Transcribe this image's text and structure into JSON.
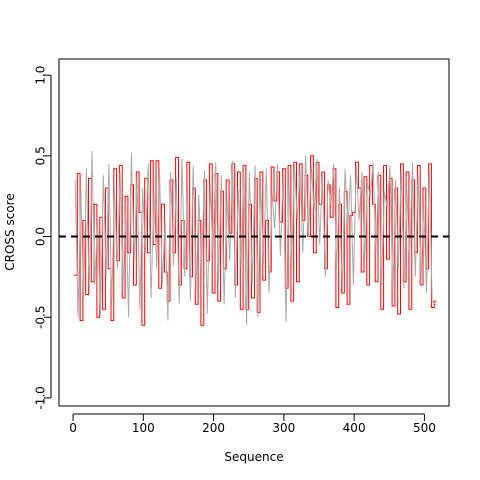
{
  "chart_data": {
    "type": "line",
    "title": "",
    "xlabel": "Sequence",
    "ylabel": "CROSS score",
    "xlim": [
      -20,
      535
    ],
    "ylim": [
      -1.05,
      1.1
    ],
    "xticks": [
      0,
      100,
      200,
      300,
      400,
      500
    ],
    "xtick_labels": [
      "0",
      "100",
      "200",
      "300",
      "400",
      "500"
    ],
    "yticks": [
      -1.0,
      -0.5,
      0.0,
      0.5,
      1.0
    ],
    "ytick_labels": [
      "-1.0",
      "-0.5",
      "0.0",
      "0.5",
      "1.0"
    ],
    "grid": false,
    "legend": "none",
    "reference_line": {
      "y": 0.0,
      "style": "dashed",
      "color": "#000000"
    },
    "series": [
      {
        "color": "#ff0000",
        "style": "step",
        "x": [
          1,
          6,
          10,
          14,
          18,
          22,
          26,
          30,
          34,
          38,
          42,
          46,
          50,
          54,
          58,
          62,
          66,
          70,
          74,
          78,
          82,
          86,
          90,
          94,
          98,
          102,
          106,
          110,
          114,
          118,
          122,
          126,
          130,
          134,
          138,
          142,
          146,
          150,
          154,
          158,
          162,
          166,
          170,
          174,
          178,
          182,
          186,
          190,
          194,
          198,
          202,
          206,
          210,
          214,
          218,
          222,
          226,
          230,
          234,
          238,
          242,
          246,
          250,
          254,
          258,
          262,
          266,
          270,
          274,
          278,
          282,
          286,
          290,
          294,
          298,
          302,
          306,
          310,
          314,
          318,
          322,
          326,
          330,
          334,
          338,
          342,
          346,
          350,
          354,
          358,
          362,
          366,
          370,
          374,
          378,
          382,
          386,
          390,
          394,
          398,
          402,
          406,
          410,
          414,
          418,
          422,
          426,
          430,
          434,
          438,
          442,
          446,
          450,
          454,
          458,
          462,
          466,
          470,
          474,
          478,
          482,
          486,
          490,
          494,
          498,
          502,
          506,
          510,
          514,
          517
        ],
        "y": [
          -0.24,
          0.39,
          -0.52,
          0.1,
          -0.36,
          0.36,
          -0.28,
          0.2,
          -0.5,
          0.12,
          -0.45,
          0.3,
          -0.2,
          -0.52,
          0.42,
          -0.15,
          0.44,
          -0.38,
          0.25,
          -0.1,
          0.32,
          -0.3,
          0.4,
          0.15,
          -0.55,
          0.36,
          -0.1,
          0.47,
          -0.05,
          0.47,
          -0.32,
          0.2,
          -0.22,
          -0.4,
          0.35,
          -0.1,
          0.49,
          -0.3,
          0.1,
          -0.2,
          0.46,
          -0.25,
          0.3,
          -0.42,
          0.1,
          -0.55,
          0.35,
          -0.15,
          0.45,
          -0.35,
          0.39,
          -0.4,
          0.28,
          -0.2,
          0.35,
          0.02,
          0.45,
          -0.3,
          0.4,
          -0.45,
          0.44,
          -0.45,
          0.2,
          -0.38,
          0.36,
          -0.47,
          0.4,
          -0.27,
          0.1,
          -0.22,
          0.43,
          0.22,
          0.4,
          0.09,
          0.42,
          -0.32,
          0.44,
          -0.4,
          0.46,
          -0.28,
          0.45,
          0.1,
          0.38,
          0.0,
          0.5,
          -0.1,
          0.46,
          0.2,
          0.4,
          -0.2,
          0.32,
          0.12,
          0.42,
          -0.44,
          0.2,
          -0.35,
          0.28,
          -0.42,
          0.13,
          0.15,
          0.46,
          0.3,
          -0.22,
          0.37,
          -0.3,
          0.44,
          0.2,
          -0.28,
          0.38,
          -0.45,
          0.44,
          -0.14,
          0.36,
          -0.43,
          0.3,
          -0.48,
          0.45,
          -0.28,
          0.4,
          -0.45,
          0.35,
          -0.1,
          0.44,
          -0.3,
          0.3,
          -0.2,
          0.45,
          -0.44,
          -0.4,
          -0.4
        ]
      },
      {
        "color": "#aaaaaa",
        "style": "line",
        "x": [
          3,
          7,
          11,
          15,
          19,
          23,
          27,
          31,
          35,
          39,
          43,
          47,
          51,
          55,
          59,
          63,
          67,
          71,
          75,
          79,
          83,
          87,
          91,
          95,
          99,
          103,
          107,
          111,
          115,
          119,
          123,
          127,
          131,
          135,
          139,
          143,
          147,
          151,
          155,
          159,
          163,
          167,
          171,
          175,
          179,
          183,
          187,
          191,
          195,
          199,
          203,
          207,
          211,
          215,
          219,
          223,
          227,
          231,
          235,
          239,
          243,
          247,
          251,
          255,
          259,
          263,
          267,
          271,
          275,
          279,
          283,
          287,
          291,
          295,
          299,
          303,
          307,
          311,
          315,
          319,
          323,
          327,
          331,
          335,
          339,
          343,
          347,
          351,
          355,
          359,
          363,
          367,
          371,
          375,
          379,
          383,
          387,
          391,
          395,
          399,
          403,
          407,
          411,
          415,
          419,
          423,
          427,
          431,
          435,
          439,
          443,
          447,
          451,
          455,
          459,
          463,
          467,
          471,
          475,
          479,
          483,
          487,
          491,
          495,
          499,
          503,
          507,
          511,
          515,
          518
        ],
        "y": [
          0.35,
          -0.5,
          0.3,
          -0.4,
          0.42,
          -0.35,
          0.53,
          -0.3,
          0.1,
          -0.48,
          0.38,
          -0.25,
          0.45,
          -0.42,
          0.3,
          -0.2,
          0.4,
          -0.35,
          0.2,
          -0.5,
          0.52,
          -0.15,
          0.38,
          -0.45,
          0.3,
          -0.1,
          0.45,
          -0.38,
          0.28,
          -0.2,
          0.42,
          -0.3,
          0.1,
          -0.52,
          0.4,
          -0.18,
          0.36,
          -0.42,
          0.48,
          -0.25,
          0.3,
          -0.4,
          0.44,
          -0.35,
          0.26,
          -0.22,
          0.41,
          -0.48,
          0.33,
          -0.12,
          0.46,
          -0.3,
          0.38,
          -0.42,
          0.25,
          -0.15,
          0.47,
          -0.38,
          0.3,
          -0.2,
          0.45,
          -0.55,
          0.4,
          -0.3,
          0.44,
          -0.5,
          0.32,
          -0.18,
          0.42,
          -0.35,
          0.28,
          0.05,
          0.45,
          -0.12,
          0.4,
          -0.53,
          0.38,
          -0.2,
          0.46,
          0.1,
          0.42,
          -0.1,
          0.5,
          0.0,
          0.44,
          0.15,
          0.48,
          -0.05,
          0.4,
          -0.25,
          0.35,
          0.2,
          0.45,
          -0.2,
          0.3,
          -0.35,
          0.42,
          0.05,
          0.38,
          -0.3,
          0.44,
          0.1,
          0.4,
          -0.15,
          0.33,
          0.25,
          0.46,
          -0.1,
          0.4,
          -0.3,
          0.28,
          0.18,
          0.44,
          -0.38,
          0.35,
          -0.2,
          0.42,
          -0.32,
          0.3,
          -0.15,
          0.46,
          -0.25,
          0.38,
          -0.3,
          0.2,
          -0.35,
          0.42,
          -0.4,
          -0.42,
          -0.42
        ]
      }
    ]
  }
}
